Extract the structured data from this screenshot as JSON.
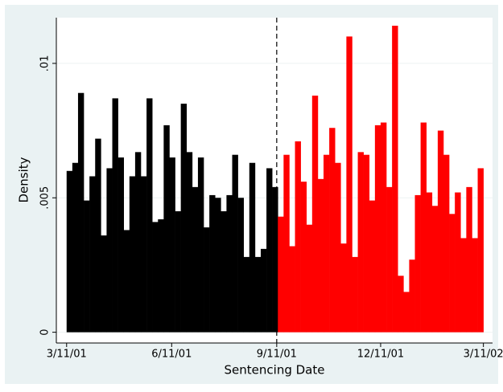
{
  "chart_data": {
    "type": "histogram",
    "x_label": "Sentencing Date",
    "y_label": "Density",
    "bins": [
      15045,
      15050,
      15055,
      15060,
      15065,
      15070,
      15075,
      15080,
      15085,
      15090,
      15095,
      15100,
      15105,
      15110,
      15115,
      15120,
      15125,
      15130,
      15135,
      15140,
      15145,
      15150,
      15155,
      15160,
      15165,
      15170,
      15175,
      15180,
      15185,
      15190,
      15195,
      15200,
      15205,
      15210,
      15215,
      15220,
      15225,
      15230,
      15235,
      15240,
      15245,
      15250,
      15255,
      15260,
      15265,
      15270,
      15275,
      15280,
      15285,
      15290,
      15295,
      15300,
      15305,
      15310,
      15315,
      15320,
      15325,
      15330,
      15335,
      15340,
      15345,
      15350,
      15355,
      15360,
      15365,
      15370,
      15375,
      15380,
      15385,
      15390,
      15395,
      15400,
      15405,
      15410
    ],
    "values": [
      0.006,
      0.0063,
      0.0089,
      0.0049,
      0.0058,
      0.0072,
      0.0036,
      0.0061,
      0.0087,
      0.0065,
      0.0038,
      0.0058,
      0.0067,
      0.0058,
      0.0087,
      0.0041,
      0.0042,
      0.0077,
      0.0065,
      0.0045,
      0.0085,
      0.0067,
      0.0054,
      0.0065,
      0.0039,
      0.0051,
      0.005,
      0.0045,
      0.0051,
      0.0066,
      0.005,
      0.0028,
      0.0063,
      0.0028,
      0.0031,
      0.0061,
      0.0054,
      0.0043,
      0.0066,
      0.0032,
      0.0071,
      0.0056,
      0.004,
      0.0088,
      0.0057,
      0.0066,
      0.0076,
      0.0063,
      0.0033,
      0.011,
      0.0028,
      0.0067,
      0.0066,
      0.0049,
      0.0077,
      0.0078,
      0.0054,
      0.0114,
      0.0021,
      0.0015,
      0.0027,
      0.0051,
      0.0078,
      0.0052,
      0.0047,
      0.0075,
      0.0066,
      0.0044,
      0.0052,
      0.0035,
      0.0054,
      0.0035,
      0.0061
    ],
    "color_before": "#000000",
    "color_after": "#ff0000",
    "xline": 15229,
    "xlim": [
      15036,
      15418
    ],
    "ylim": [
      -0.0004,
      0.0117
    ],
    "xticks": [
      {
        "value": 15045,
        "label": "3/11/01"
      },
      {
        "value": 15137,
        "label": "6/11/01"
      },
      {
        "value": 15229,
        "label": "9/11/01"
      },
      {
        "value": 15320,
        "label": "12/11/01"
      },
      {
        "value": 15410,
        "label": "3/11/02"
      }
    ],
    "yticks": [
      0,
      {
        "value": 0.005,
        "label": ".005"
      },
      {
        "value": 0.01,
        "label": ".01"
      }
    ],
    "grid": true
  }
}
